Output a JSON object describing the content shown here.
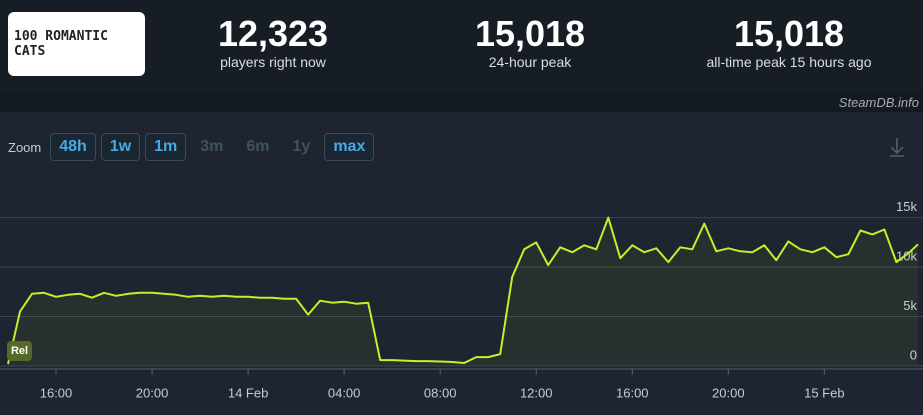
{
  "header": {
    "logo": "100 ROMANTIC CATS",
    "stats": [
      {
        "value": "12,323",
        "label": "players right now"
      },
      {
        "value": "15,018",
        "label": "24-hour peak"
      },
      {
        "value": "15,018",
        "label": "all-time peak 15 hours ago"
      }
    ]
  },
  "watermark": "SteamDB.info",
  "zoom": {
    "label": "Zoom",
    "buttons": [
      {
        "text": "48h",
        "active": true
      },
      {
        "text": "1w",
        "active": true
      },
      {
        "text": "1m",
        "active": true
      },
      {
        "text": "3m",
        "active": false
      },
      {
        "text": "6m",
        "active": false
      },
      {
        "text": "1y",
        "active": false
      },
      {
        "text": "max",
        "active": true
      }
    ]
  },
  "chart_data": {
    "type": "line",
    "marker": "Rel",
    "x": [
      14,
      14.5,
      15,
      15.5,
      16,
      16.5,
      17,
      17.5,
      18,
      18.5,
      19,
      19.5,
      20,
      20.5,
      21,
      21.5,
      22,
      22.5,
      23,
      23.5,
      24,
      24.5,
      25,
      25.5,
      26,
      26.5,
      27,
      27.5,
      28,
      28.5,
      29,
      29.5,
      30,
      30.5,
      31,
      31.5,
      32,
      32.5,
      33,
      33.5,
      34,
      34.5,
      35,
      35.5,
      36,
      36.5,
      37,
      37.5,
      38,
      38.5,
      39,
      39.5,
      40,
      40.5,
      41,
      41.5,
      42,
      42.5,
      43,
      43.5,
      44,
      44.5,
      45,
      45.5,
      46,
      46.5,
      47,
      47.5,
      48,
      48.5,
      49,
      49.5,
      50,
      50.5,
      51,
      51.5,
      51.9
    ],
    "series": [
      {
        "color": "#c6ef2a",
        "values": [
          200,
          5500,
          7300,
          7400,
          7000,
          7200,
          7300,
          6900,
          7400,
          7100,
          7300,
          7400,
          7400,
          7300,
          7200,
          7000,
          7100,
          7000,
          7100,
          7000,
          7000,
          6900,
          6900,
          6800,
          6800,
          5200,
          6600,
          6400,
          6500,
          6300,
          6400,
          600,
          600,
          550,
          500,
          500,
          450,
          400,
          300,
          900,
          900,
          1200,
          9000,
          11800,
          12500,
          10200,
          12000,
          11500,
          12200,
          11800,
          15000,
          10900,
          12200,
          11500,
          11900,
          10500,
          12000,
          11800,
          14400,
          11600,
          11900,
          11600,
          11500,
          12200,
          10700,
          12600,
          11800,
          11500,
          12000,
          11000,
          11300,
          13700,
          13300,
          13800,
          10500,
          11400,
          12300
        ]
      }
    ],
    "xlim": [
      14,
      51.9
    ],
    "xticks": [
      {
        "value": 16,
        "label": "16:00"
      },
      {
        "value": 20,
        "label": "20:00"
      },
      {
        "value": 24,
        "label": "14 Feb"
      },
      {
        "value": 28,
        "label": "04:00"
      },
      {
        "value": 32,
        "label": "08:00"
      },
      {
        "value": 36,
        "label": "12:00"
      },
      {
        "value": 40,
        "label": "16:00"
      },
      {
        "value": 44,
        "label": "20:00"
      },
      {
        "value": 48,
        "label": "15 Feb"
      }
    ],
    "ylim": [
      0,
      18500
    ],
    "yticks": [
      0,
      {
        "value": 5000,
        "label": "5k"
      },
      {
        "value": 10000,
        "label": "10k"
      },
      {
        "value": 15000,
        "label": "15k"
      }
    ],
    "grid": true
  }
}
